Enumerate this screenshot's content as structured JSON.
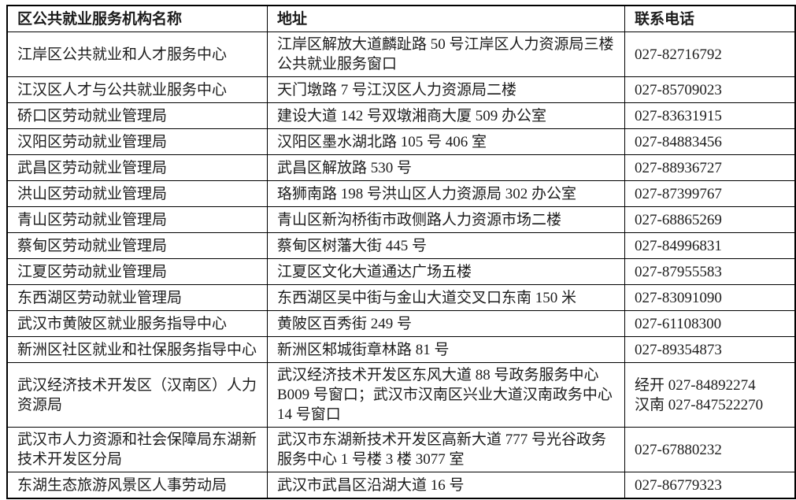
{
  "table": {
    "headers": {
      "name": "区公共就业服务机构名称",
      "address": "地址",
      "phone": "联系电话"
    },
    "rows": [
      {
        "name": "江岸区公共就业和人才服务中心",
        "address": "江岸区解放大道麟趾路 50 号江岸区人力资源局三楼公共就业服务窗口",
        "phone": "027-82716792"
      },
      {
        "name": "江汉区人才与公共就业服务中心",
        "address": "天门墩路 7 号江汉区人力资源局二楼",
        "phone": "027-85709023"
      },
      {
        "name": "硚口区劳动就业管理局",
        "address": "建设大道 142 号双墩湘商大厦 509 办公室",
        "phone": "027-83631915"
      },
      {
        "name": "汉阳区劳动就业管理局",
        "address": "汉阳区墨水湖北路 105 号 406 室",
        "phone": "027-84883456"
      },
      {
        "name": "武昌区劳动就业管理局",
        "address": "武昌区解放路 530 号",
        "phone": "027-88936727"
      },
      {
        "name": "洪山区劳动就业管理局",
        "address": "珞狮南路 198 号洪山区人力资源局 302 办公室",
        "phone": "027-87399767"
      },
      {
        "name": "青山区劳动就业管理局",
        "address": "青山区新沟桥街市政侧路人力资源市场二楼",
        "phone": "027-68865269"
      },
      {
        "name": "蔡甸区劳动就业管理局",
        "address": "蔡甸区树藩大街 445 号",
        "phone": "027-84996831"
      },
      {
        "name": "江夏区劳动就业管理局",
        "address": "江夏区文化大道通达广场五楼",
        "phone": "027-87955583"
      },
      {
        "name": "东西湖区劳动就业管理局",
        "address": "东西湖区吴中街与金山大道交叉口东南 150 米",
        "phone": "027-83091090"
      },
      {
        "name": "武汉市黄陂区就业服务指导中心",
        "address": "黄陂区百秀街 249 号",
        "phone": "027-61108300"
      },
      {
        "name": "新洲区社区就业和社保服务指导中心",
        "address": "新洲区邾城街章林路 81 号",
        "phone": "027-89354873"
      },
      {
        "name": "武汉经济技术开发区（汉南区）人力资源局",
        "address": "武汉经济技术开发区东风大道 88 号政务服务中心 B009 号窗口；武汉市汉南区兴业大道汉南政务中心 14 号窗口",
        "phone": "经开 027-84892274\n汉南 027-847522270"
      },
      {
        "name": "武汉市人力资源和社会保障局东湖新技术开发区分局",
        "address": "武汉市东湖新技术开发区高新大道 777 号光谷政务服务中心 1 号楼 3 楼 3077 室",
        "phone": "027-67880232"
      },
      {
        "name": "东湖生态旅游风景区人事劳动局",
        "address": "武汉市武昌区沿湖大道 16 号",
        "phone": "027-86779323"
      }
    ],
    "colors": {
      "border": "#000000",
      "text": "#1c1c1c",
      "background": "#ffffff"
    }
  }
}
